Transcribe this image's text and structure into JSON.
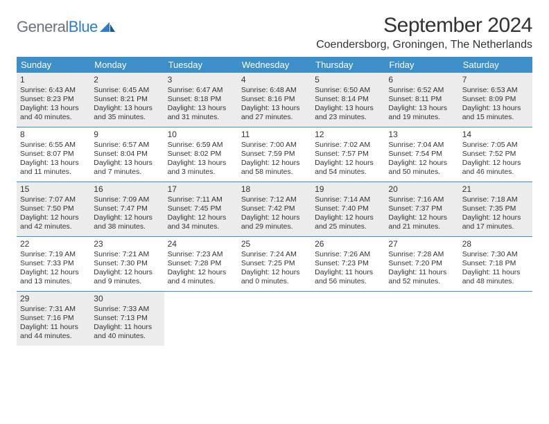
{
  "logo": {
    "word1": "General",
    "word2": "Blue"
  },
  "title": "September 2024",
  "location": "Coendersborg, Groningen, The Netherlands",
  "colors": {
    "header_bg": "#3d8fc9",
    "header_text": "#ffffff",
    "shaded_bg": "#ececec",
    "text": "#333333",
    "logo_gray": "#6b7280",
    "logo_blue": "#2f7dc4",
    "rule": "#3d8fc9"
  },
  "daynames": [
    "Sunday",
    "Monday",
    "Tuesday",
    "Wednesday",
    "Thursday",
    "Friday",
    "Saturday"
  ],
  "weeks": [
    [
      {
        "n": "1",
        "shaded": true,
        "sr": "Sunrise: 6:43 AM",
        "ss": "Sunset: 8:23 PM",
        "dl1": "Daylight: 13 hours",
        "dl2": "and 40 minutes."
      },
      {
        "n": "2",
        "shaded": true,
        "sr": "Sunrise: 6:45 AM",
        "ss": "Sunset: 8:21 PM",
        "dl1": "Daylight: 13 hours",
        "dl2": "and 35 minutes."
      },
      {
        "n": "3",
        "shaded": true,
        "sr": "Sunrise: 6:47 AM",
        "ss": "Sunset: 8:18 PM",
        "dl1": "Daylight: 13 hours",
        "dl2": "and 31 minutes."
      },
      {
        "n": "4",
        "shaded": true,
        "sr": "Sunrise: 6:48 AM",
        "ss": "Sunset: 8:16 PM",
        "dl1": "Daylight: 13 hours",
        "dl2": "and 27 minutes."
      },
      {
        "n": "5",
        "shaded": true,
        "sr": "Sunrise: 6:50 AM",
        "ss": "Sunset: 8:14 PM",
        "dl1": "Daylight: 13 hours",
        "dl2": "and 23 minutes."
      },
      {
        "n": "6",
        "shaded": true,
        "sr": "Sunrise: 6:52 AM",
        "ss": "Sunset: 8:11 PM",
        "dl1": "Daylight: 13 hours",
        "dl2": "and 19 minutes."
      },
      {
        "n": "7",
        "shaded": true,
        "sr": "Sunrise: 6:53 AM",
        "ss": "Sunset: 8:09 PM",
        "dl1": "Daylight: 13 hours",
        "dl2": "and 15 minutes."
      }
    ],
    [
      {
        "n": "8",
        "sr": "Sunrise: 6:55 AM",
        "ss": "Sunset: 8:07 PM",
        "dl1": "Daylight: 13 hours",
        "dl2": "and 11 minutes."
      },
      {
        "n": "9",
        "sr": "Sunrise: 6:57 AM",
        "ss": "Sunset: 8:04 PM",
        "dl1": "Daylight: 13 hours",
        "dl2": "and 7 minutes."
      },
      {
        "n": "10",
        "sr": "Sunrise: 6:59 AM",
        "ss": "Sunset: 8:02 PM",
        "dl1": "Daylight: 13 hours",
        "dl2": "and 3 minutes."
      },
      {
        "n": "11",
        "sr": "Sunrise: 7:00 AM",
        "ss": "Sunset: 7:59 PM",
        "dl1": "Daylight: 12 hours",
        "dl2": "and 58 minutes."
      },
      {
        "n": "12",
        "sr": "Sunrise: 7:02 AM",
        "ss": "Sunset: 7:57 PM",
        "dl1": "Daylight: 12 hours",
        "dl2": "and 54 minutes."
      },
      {
        "n": "13",
        "sr": "Sunrise: 7:04 AM",
        "ss": "Sunset: 7:54 PM",
        "dl1": "Daylight: 12 hours",
        "dl2": "and 50 minutes."
      },
      {
        "n": "14",
        "sr": "Sunrise: 7:05 AM",
        "ss": "Sunset: 7:52 PM",
        "dl1": "Daylight: 12 hours",
        "dl2": "and 46 minutes."
      }
    ],
    [
      {
        "n": "15",
        "shaded": true,
        "sr": "Sunrise: 7:07 AM",
        "ss": "Sunset: 7:50 PM",
        "dl1": "Daylight: 12 hours",
        "dl2": "and 42 minutes."
      },
      {
        "n": "16",
        "shaded": true,
        "sr": "Sunrise: 7:09 AM",
        "ss": "Sunset: 7:47 PM",
        "dl1": "Daylight: 12 hours",
        "dl2": "and 38 minutes."
      },
      {
        "n": "17",
        "shaded": true,
        "sr": "Sunrise: 7:11 AM",
        "ss": "Sunset: 7:45 PM",
        "dl1": "Daylight: 12 hours",
        "dl2": "and 34 minutes."
      },
      {
        "n": "18",
        "shaded": true,
        "sr": "Sunrise: 7:12 AM",
        "ss": "Sunset: 7:42 PM",
        "dl1": "Daylight: 12 hours",
        "dl2": "and 29 minutes."
      },
      {
        "n": "19",
        "shaded": true,
        "sr": "Sunrise: 7:14 AM",
        "ss": "Sunset: 7:40 PM",
        "dl1": "Daylight: 12 hours",
        "dl2": "and 25 minutes."
      },
      {
        "n": "20",
        "shaded": true,
        "sr": "Sunrise: 7:16 AM",
        "ss": "Sunset: 7:37 PM",
        "dl1": "Daylight: 12 hours",
        "dl2": "and 21 minutes."
      },
      {
        "n": "21",
        "shaded": true,
        "sr": "Sunrise: 7:18 AM",
        "ss": "Sunset: 7:35 PM",
        "dl1": "Daylight: 12 hours",
        "dl2": "and 17 minutes."
      }
    ],
    [
      {
        "n": "22",
        "sr": "Sunrise: 7:19 AM",
        "ss": "Sunset: 7:33 PM",
        "dl1": "Daylight: 12 hours",
        "dl2": "and 13 minutes."
      },
      {
        "n": "23",
        "sr": "Sunrise: 7:21 AM",
        "ss": "Sunset: 7:30 PM",
        "dl1": "Daylight: 12 hours",
        "dl2": "and 9 minutes."
      },
      {
        "n": "24",
        "sr": "Sunrise: 7:23 AM",
        "ss": "Sunset: 7:28 PM",
        "dl1": "Daylight: 12 hours",
        "dl2": "and 4 minutes."
      },
      {
        "n": "25",
        "sr": "Sunrise: 7:24 AM",
        "ss": "Sunset: 7:25 PM",
        "dl1": "Daylight: 12 hours",
        "dl2": "and 0 minutes."
      },
      {
        "n": "26",
        "sr": "Sunrise: 7:26 AM",
        "ss": "Sunset: 7:23 PM",
        "dl1": "Daylight: 11 hours",
        "dl2": "and 56 minutes."
      },
      {
        "n": "27",
        "sr": "Sunrise: 7:28 AM",
        "ss": "Sunset: 7:20 PM",
        "dl1": "Daylight: 11 hours",
        "dl2": "and 52 minutes."
      },
      {
        "n": "28",
        "sr": "Sunrise: 7:30 AM",
        "ss": "Sunset: 7:18 PM",
        "dl1": "Daylight: 11 hours",
        "dl2": "and 48 minutes."
      }
    ],
    [
      {
        "n": "29",
        "shaded": true,
        "sr": "Sunrise: 7:31 AM",
        "ss": "Sunset: 7:16 PM",
        "dl1": "Daylight: 11 hours",
        "dl2": "and 44 minutes."
      },
      {
        "n": "30",
        "shaded": true,
        "sr": "Sunrise: 7:33 AM",
        "ss": "Sunset: 7:13 PM",
        "dl1": "Daylight: 11 hours",
        "dl2": "and 40 minutes."
      },
      {
        "empty": true
      },
      {
        "empty": true
      },
      {
        "empty": true
      },
      {
        "empty": true
      },
      {
        "empty": true
      }
    ]
  ]
}
